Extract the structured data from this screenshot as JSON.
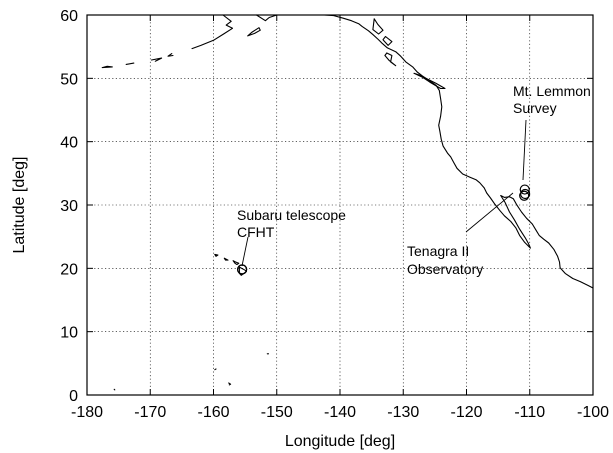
{
  "axes": {
    "xlabel": "Longitude [deg]",
    "ylabel": "Latitude [deg]",
    "xlim": [
      -180,
      -100
    ],
    "ylim": [
      0,
      60
    ],
    "xticks": [
      -180,
      -170,
      -160,
      -150,
      -140,
      -130,
      -120,
      -110,
      -100
    ],
    "yticks": [
      0,
      10,
      20,
      30,
      40,
      50,
      60
    ],
    "grid": true
  },
  "map_data": {
    "sites": [
      {
        "id": "hawaii",
        "label_lines": [
          "Subaru telescope",
          "CFHT"
        ],
        "points": [
          [
            -155.48,
            19.82
          ],
          [
            -155.47,
            19.83
          ]
        ]
      },
      {
        "id": "lemmon",
        "label_lines": [
          "Mt. Lemmon",
          "Survey"
        ],
        "points": [
          [
            -110.79,
            32.44
          ],
          [
            -110.73,
            31.74
          ]
        ]
      },
      {
        "id": "tenagra",
        "label_lines": [
          "Tenagra II",
          "Observatory"
        ],
        "points": [
          [
            -110.88,
            31.46
          ]
        ]
      }
    ],
    "coastlines": [
      [
        [
          -147.3,
          60.0
        ],
        [
          -146.2,
          60.8
        ],
        [
          -145.5,
          60.4
        ],
        [
          -144.0,
          60.1
        ],
        [
          -142.5,
          60.0
        ],
        [
          -141.0,
          59.9
        ],
        [
          -139.5,
          59.5
        ],
        [
          -138.2,
          59.1
        ],
        [
          -137.0,
          58.6
        ],
        [
          -136.5,
          58.2
        ],
        [
          -135.5,
          57.5
        ],
        [
          -134.8,
          56.9
        ],
        [
          -134.0,
          56.2
        ],
        [
          -133.4,
          55.6
        ],
        [
          -132.5,
          54.8
        ],
        [
          -131.2,
          54.2
        ],
        [
          -130.4,
          53.5
        ],
        [
          -129.6,
          52.6
        ],
        [
          -128.5,
          51.8
        ],
        [
          -127.8,
          51.0
        ],
        [
          -127.0,
          50.4
        ],
        [
          -125.8,
          49.6
        ],
        [
          -124.8,
          48.9
        ],
        [
          -124.3,
          48.1
        ],
        [
          -124.1,
          46.8
        ],
        [
          -123.9,
          45.5
        ],
        [
          -124.1,
          44.0
        ],
        [
          -124.4,
          42.6
        ],
        [
          -124.2,
          41.6
        ],
        [
          -124.0,
          40.4
        ],
        [
          -123.7,
          39.3
        ],
        [
          -123.0,
          38.2
        ],
        [
          -122.5,
          37.6
        ],
        [
          -122.0,
          36.7
        ],
        [
          -121.5,
          35.8
        ],
        [
          -120.6,
          34.9
        ],
        [
          -119.5,
          34.4
        ],
        [
          -118.5,
          34.0
        ],
        [
          -117.9,
          33.5
        ],
        [
          -117.2,
          32.7
        ],
        [
          -116.8,
          31.9
        ],
        [
          -116.2,
          31.1
        ],
        [
          -115.5,
          30.1
        ],
        [
          -114.7,
          29.1
        ],
        [
          -114.0,
          28.3
        ],
        [
          -113.0,
          27.4
        ],
        [
          -112.2,
          26.4
        ],
        [
          -111.6,
          25.2
        ],
        [
          -110.8,
          24.1
        ],
        [
          -109.9,
          23.2
        ],
        [
          -110.2,
          23.9
        ],
        [
          -110.7,
          24.8
        ],
        [
          -111.6,
          26.2
        ],
        [
          -112.4,
          27.6
        ],
        [
          -113.2,
          28.9
        ],
        [
          -113.9,
          30.4
        ],
        [
          -114.6,
          31.5
        ],
        [
          -114.0,
          31.2
        ],
        [
          -113.2,
          31.3
        ],
        [
          -112.6,
          31.0
        ],
        [
          -112.1,
          30.1
        ],
        [
          -111.3,
          28.9
        ],
        [
          -110.5,
          27.9
        ],
        [
          -109.6,
          27.0
        ],
        [
          -109.0,
          26.0
        ],
        [
          -108.5,
          25.2
        ],
        [
          -107.8,
          24.6
        ],
        [
          -107.0,
          24.0
        ],
        [
          -106.2,
          23.0
        ],
        [
          -105.6,
          21.9
        ],
        [
          -105.3,
          21.0
        ],
        [
          -105.2,
          20.1
        ],
        [
          -104.4,
          19.2
        ],
        [
          -103.2,
          18.4
        ],
        [
          -102.0,
          17.9
        ],
        [
          -100.8,
          17.3
        ],
        [
          -100.0,
          16.9
        ]
      ],
      [
        [
          -153.2,
          60.0
        ],
        [
          -151.8,
          59.1
        ],
        [
          -151.2,
          59.6
        ],
        [
          -150.0,
          60.0
        ]
      ],
      [
        [
          -152.8,
          58.0
        ],
        [
          -153.9,
          57.3
        ],
        [
          -154.6,
          56.7
        ],
        [
          -153.5,
          57.1
        ],
        [
          -152.6,
          57.6
        ],
        [
          -152.8,
          58.0
        ]
      ],
      [
        [
          -158.5,
          60.0
        ],
        [
          -157.2,
          59.0
        ],
        [
          -158.0,
          58.4
        ],
        [
          -157.0,
          57.9
        ],
        [
          -158.4,
          57.0
        ],
        [
          -160.0,
          56.0
        ],
        [
          -162.0,
          55.2
        ],
        [
          -163.4,
          54.7
        ]
      ],
      [
        [
          -166.6,
          53.9
        ],
        [
          -167.2,
          53.5
        ],
        [
          -166.4,
          53.6
        ]
      ],
      [
        [
          -169.8,
          52.9
        ],
        [
          -168.2,
          53.2
        ],
        [
          -169.2,
          52.7
        ]
      ],
      [
        [
          -176.0,
          51.8
        ],
        [
          -177.6,
          51.7
        ],
        [
          -176.8,
          51.9
        ],
        [
          -176.0,
          51.8
        ]
      ],
      [
        [
          -173.8,
          52.2
        ],
        [
          -172.6,
          52.4
        ]
      ],
      [
        [
          -134.6,
          59.4
        ],
        [
          -134.0,
          58.5
        ],
        [
          -133.2,
          57.6
        ],
        [
          -133.9,
          57.0
        ],
        [
          -134.8,
          57.7
        ],
        [
          -134.6,
          59.4
        ]
      ],
      [
        [
          -132.8,
          56.6
        ],
        [
          -131.8,
          55.8
        ],
        [
          -132.4,
          55.2
        ],
        [
          -133.2,
          56.1
        ],
        [
          -132.8,
          56.6
        ]
      ],
      [
        [
          -132.6,
          54.0
        ],
        [
          -131.8,
          53.6
        ],
        [
          -132.0,
          52.6
        ],
        [
          -131.2,
          52.0
        ],
        [
          -132.2,
          52.8
        ],
        [
          -132.9,
          53.6
        ],
        [
          -132.6,
          54.0
        ]
      ],
      [
        [
          -128.3,
          50.8
        ],
        [
          -127.0,
          50.2
        ],
        [
          -125.8,
          49.4
        ],
        [
          -124.1,
          48.4
        ],
        [
          -123.4,
          48.4
        ],
        [
          -124.8,
          49.2
        ],
        [
          -126.2,
          49.9
        ],
        [
          -127.4,
          50.5
        ],
        [
          -128.3,
          50.8
        ]
      ],
      [
        [
          -159.8,
          22.2
        ],
        [
          -159.3,
          22.1
        ],
        [
          -159.6,
          21.9
        ],
        [
          -159.8,
          22.2
        ]
      ],
      [
        [
          -158.3,
          21.6
        ],
        [
          -157.7,
          21.3
        ],
        [
          -158.1,
          21.3
        ],
        [
          -158.3,
          21.6
        ]
      ],
      [
        [
          -156.9,
          21.2
        ],
        [
          -156.6,
          20.8
        ],
        [
          -156.3,
          20.6
        ],
        [
          -156.0,
          20.8
        ],
        [
          -156.5,
          21.0
        ],
        [
          -156.9,
          21.2
        ]
      ],
      [
        [
          -155.9,
          20.2
        ],
        [
          -155.0,
          19.7
        ],
        [
          -154.8,
          19.5
        ],
        [
          -155.6,
          18.9
        ],
        [
          -155.9,
          19.2
        ],
        [
          -155.9,
          20.2
        ]
      ],
      [
        [
          -151.5,
          6.5
        ],
        [
          -151.3,
          6.5
        ]
      ],
      [
        [
          -159.8,
          4.0
        ],
        [
          -159.6,
          4.1
        ]
      ],
      [
        [
          -175.7,
          0.9
        ],
        [
          -175.6,
          0.8
        ]
      ],
      [
        [
          -157.6,
          1.9
        ],
        [
          -157.3,
          1.7
        ],
        [
          -157.5,
          1.6
        ]
      ]
    ]
  }
}
